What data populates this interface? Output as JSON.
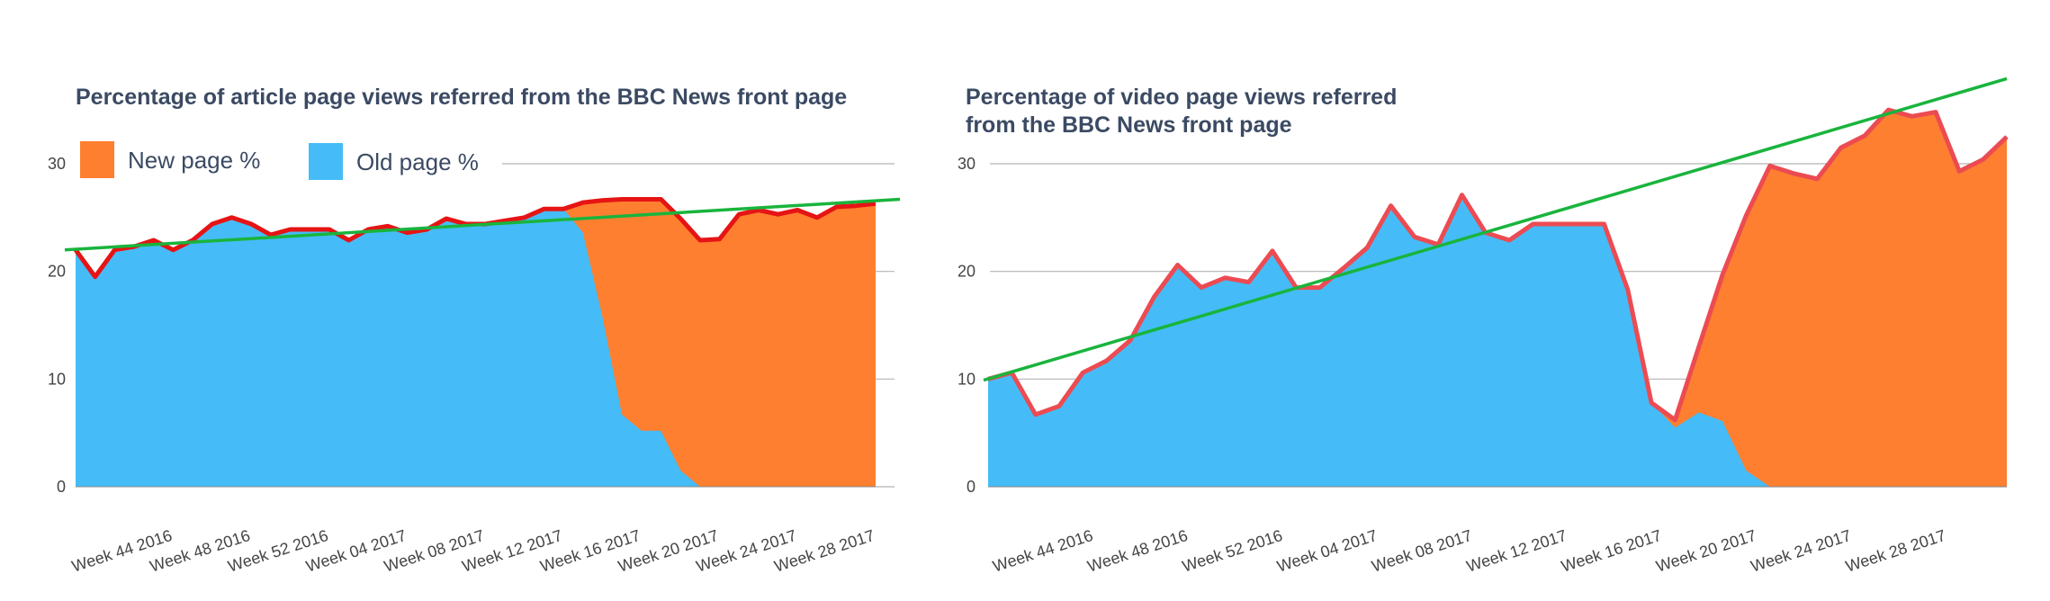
{
  "chart_data": [
    {
      "type": "area",
      "title": "Percentage of article page views referred from the BBC News front page",
      "title_lines": [
        "Percentage of article page views referred from the BBC News front page"
      ],
      "ylim": [
        0,
        30
      ],
      "yticks": [
        0,
        10,
        20,
        30
      ],
      "grid": true,
      "legend": {
        "placement": "top-left",
        "entries": [
          {
            "label": "New page %",
            "color": "#fd7f2f"
          },
          {
            "label": "Old page %",
            "color": "#45bcf7"
          }
        ]
      },
      "x_tick_labels": [
        "Week 44 2016",
        "Week 48 2016",
        "Week 52 2016",
        "Week 04 2017",
        "Week 08 2017",
        "Week 12 2017",
        "Week 16 2017",
        "Week 20 2017",
        "Week 24 2017",
        "Week 28 2017"
      ],
      "x_tick_every": 4,
      "series": [
        {
          "name": "New page %",
          "color": "#fd7f2f",
          "values": [
            0,
            0,
            0,
            0,
            0,
            0,
            0,
            0,
            0,
            0,
            0,
            0,
            0,
            0,
            0,
            0,
            0,
            0,
            0,
            0,
            0,
            0,
            0,
            0,
            0,
            0,
            2.8,
            10.8,
            20.0,
            21.5,
            21.5,
            23.4,
            22.9,
            23.0,
            25.3,
            25.7,
            25.3,
            25.7,
            25.0,
            26.0,
            26.1,
            26.3
          ]
        },
        {
          "name": "Old page %",
          "color": "#45bcf7",
          "values": [
            22.0,
            19.5,
            22.0,
            22.3,
            22.9,
            22.0,
            22.9,
            24.4,
            25.0,
            24.4,
            23.4,
            23.9,
            23.9,
            23.9,
            22.9,
            23.9,
            24.2,
            23.6,
            23.9,
            24.9,
            24.4,
            24.4,
            24.7,
            25.0,
            25.8,
            25.8,
            23.6,
            15.8,
            6.7,
            5.2,
            5.2,
            1.5,
            0,
            0,
            0,
            0,
            0,
            0,
            0,
            0,
            0,
            0
          ]
        }
      ],
      "trendline": {
        "color": "#19b43d",
        "start": 22.0,
        "end": 26.7
      },
      "total_line_color": "#e61414"
    },
    {
      "type": "area",
      "title": "Percentage of video page views referred from the BBC News front page",
      "title_lines": [
        "Percentage of video page views referred",
        "from the BBC News front page"
      ],
      "ylim": [
        0,
        30
      ],
      "yticks": [
        0,
        10,
        20,
        30
      ],
      "grid": true,
      "legend": {
        "placement": "none",
        "entries": []
      },
      "x_tick_labels": [
        "Week 44 2016",
        "Week 48 2016",
        "Week 52 2016",
        "Week 04 2017",
        "Week 08 2017",
        "Week 12 2017",
        "Week 16 2017",
        "Week 20 2017",
        "Week 24 2017",
        "Week 28 2017"
      ],
      "x_tick_every": 4,
      "series": [
        {
          "name": "New page %",
          "color": "#fd7f2f",
          "values": [
            0,
            0,
            0,
            0,
            0,
            0,
            0,
            0,
            0,
            0,
            0,
            0,
            0,
            0,
            0,
            0,
            0,
            0,
            0,
            0,
            0,
            0,
            0,
            0,
            0,
            0,
            0,
            0,
            0,
            0.7,
            6.1,
            13.6,
            23.7,
            29.8,
            29.1,
            28.6,
            31.5,
            32.6,
            35.0,
            34.4,
            34.8,
            29.3,
            30.4,
            32.5
          ]
        },
        {
          "name": "Old page %",
          "color": "#45bcf7",
          "values": [
            10.0,
            10.6,
            6.7,
            7.5,
            10.6,
            11.7,
            13.6,
            17.6,
            20.6,
            18.5,
            19.4,
            19.0,
            21.9,
            18.5,
            18.5,
            20.3,
            22.2,
            26.1,
            23.2,
            22.5,
            27.1,
            23.6,
            22.9,
            24.4,
            24.4,
            24.4,
            24.4,
            18.3,
            7.8,
            5.5,
            6.9,
            6.1,
            1.5,
            0,
            0,
            0,
            0,
            0,
            0,
            0,
            0,
            0,
            0,
            0
          ]
        }
      ],
      "trendline": {
        "color": "#19b43d",
        "start": 9.9,
        "end": 37.9
      },
      "total_line_color": "#ec4b52"
    }
  ]
}
